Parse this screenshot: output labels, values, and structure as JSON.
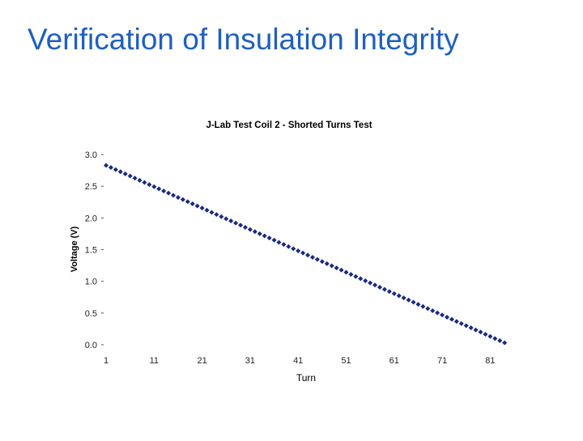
{
  "slide": {
    "title": "Verification of Insulation Integrity"
  },
  "chart_data": {
    "type": "scatter",
    "title": "J-Lab Test Coil 2 - Shorted Turns Test",
    "xlabel": "Turn",
    "ylabel": "Voltage (V)",
    "ylim": [
      0,
      3.0
    ],
    "xlim": [
      1,
      84
    ],
    "yticks": [
      "3.0",
      "2.5",
      "2.0",
      "1.5",
      "1.0",
      "0.5",
      "0.0"
    ],
    "xticks": [
      "1",
      "11",
      "21",
      "31",
      "41",
      "51",
      "61",
      "71",
      "81"
    ],
    "grid": false,
    "legend": "none",
    "marker_color": "#1a2a80",
    "series": [
      {
        "x_start": 1,
        "x_end": 84,
        "y_start": 2.83,
        "y_end": 0.03
      }
    ]
  }
}
